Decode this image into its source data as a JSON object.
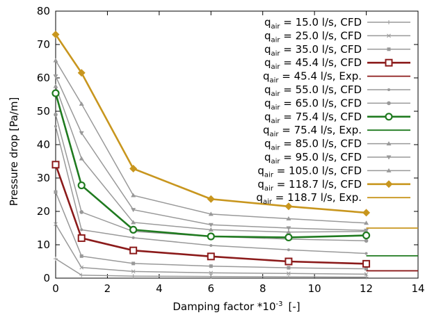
{
  "chart_data": {
    "type": "line",
    "xlabel": "Damping factor *10",
    "xlabel_exponent": "-3",
    "xlabel_unit": "[-]",
    "ylabel": "Pressure drop [Pa/m]",
    "xlim": [
      0,
      14
    ],
    "ylim": [
      0,
      80
    ],
    "xticks": [
      0,
      2,
      4,
      6,
      8,
      10,
      12,
      14
    ],
    "yticks": [
      0,
      10,
      20,
      30,
      40,
      50,
      60,
      70,
      80
    ],
    "grid": false,
    "legend_position": "top-right",
    "x": [
      0,
      1,
      3,
      6,
      9,
      12
    ],
    "series": [
      {
        "q": "15.0",
        "unit": "l/s, CFD",
        "values": [
          5.8,
          0.9,
          0.6,
          0.5,
          0.4,
          0.3
        ],
        "color": "#999999",
        "marker": "plus",
        "emphasis": false
      },
      {
        "q": "25.0",
        "unit": "l/s, CFD",
        "values": [
          16.2,
          3.2,
          2.0,
          1.6,
          1.4,
          1.2
        ],
        "color": "#999999",
        "marker": "x",
        "emphasis": false
      },
      {
        "q": "35.0",
        "unit": "l/s, CFD",
        "values": [
          25.8,
          6.6,
          4.4,
          3.6,
          3.1,
          2.8
        ],
        "color": "#999999",
        "marker": "square",
        "emphasis": false
      },
      {
        "q": "45.4",
        "unit": "l/s, CFD",
        "values": [
          34.0,
          12.0,
          8.3,
          6.5,
          5.0,
          4.3
        ],
        "color": "#8b1a1a",
        "marker": "square-open",
        "emphasis": true
      },
      {
        "q": "55.0",
        "unit": "l/s, CFD",
        "values": [
          45.5,
          14.5,
          12.1,
          9.8,
          8.5,
          7.4
        ],
        "color": "#999999",
        "marker": "dot",
        "emphasis": false
      },
      {
        "q": "65.0",
        "unit": "l/s, CFD",
        "values": [
          49.0,
          19.8,
          14.0,
          12.5,
          11.7,
          11.2
        ],
        "color": "#999999",
        "marker": "circle",
        "emphasis": false
      },
      {
        "q": "75.4",
        "unit": "l/s, CFD",
        "values": [
          55.4,
          27.8,
          14.5,
          12.5,
          12.2,
          12.8
        ],
        "color": "#1f7a1f",
        "marker": "circle-open",
        "emphasis": true
      },
      {
        "q": "85.0",
        "unit": "l/s, CFD",
        "values": [
          57.5,
          35.8,
          16.7,
          14.5,
          13.8,
          14.0
        ],
        "color": "#999999",
        "marker": "triangle",
        "emphasis": false
      },
      {
        "q": "95.0",
        "unit": "l/s, CFD",
        "values": [
          60.5,
          43.5,
          20.5,
          16.0,
          15.0,
          14.3
        ],
        "color": "#999999",
        "marker": "triangle-down",
        "emphasis": false
      },
      {
        "q": "105.0",
        "unit": "l/s, CFD",
        "values": [
          65.2,
          52.2,
          24.8,
          19.2,
          17.8,
          16.5
        ],
        "color": "#999999",
        "marker": "triangle",
        "emphasis": false
      },
      {
        "q": "118.7",
        "unit": "l/s, CFD",
        "values": [
          73.0,
          61.5,
          32.8,
          23.7,
          21.5,
          19.6
        ],
        "color": "#c8961e",
        "marker": "diamond",
        "emphasis": true
      }
    ],
    "experiments": [
      {
        "q": "45.4",
        "unit": "l/s, Exp.",
        "value": 2.2,
        "x_from": 12,
        "x_to": 14,
        "color": "#8b1a1a"
      },
      {
        "q": "75.4",
        "unit": "l/s, Exp.",
        "value": 6.7,
        "x_from": 12,
        "x_to": 14,
        "color": "#1f7a1f"
      },
      {
        "q": "118.7",
        "unit": "l/s, Exp.",
        "value": 15.0,
        "x_from": 12,
        "x_to": 14,
        "color": "#c8961e"
      }
    ],
    "legend": [
      {
        "q": "15.0",
        "unit": "l/s, CFD",
        "ref": "s0"
      },
      {
        "q": "25.0",
        "unit": "l/s, CFD",
        "ref": "s1"
      },
      {
        "q": "35.0",
        "unit": "l/s, CFD",
        "ref": "s2"
      },
      {
        "q": "45.4",
        "unit": "l/s, CFD",
        "ref": "s3"
      },
      {
        "q": "45.4",
        "unit": "l/s, Exp.",
        "ref": "e0"
      },
      {
        "q": "55.0",
        "unit": "l/s, CFD",
        "ref": "s4"
      },
      {
        "q": "65.0",
        "unit": "l/s, CFD",
        "ref": "s5"
      },
      {
        "q": "75.4",
        "unit": "l/s, CFD",
        "ref": "s6"
      },
      {
        "q": "75.4",
        "unit": "l/s, Exp.",
        "ref": "e1"
      },
      {
        "q": "85.0",
        "unit": "l/s, CFD",
        "ref": "s7"
      },
      {
        "q": "95.0",
        "unit": "l/s, CFD",
        "ref": "s8"
      },
      {
        "q": "105.0",
        "unit": "l/s, CFD",
        "ref": "s9"
      },
      {
        "q": "118.7",
        "unit": "l/s, CFD",
        "ref": "s10"
      },
      {
        "q": "118.7",
        "unit": "l/s, Exp.",
        "ref": "e2"
      }
    ],
    "legend_symbol": "q",
    "legend_subscript": "air"
  }
}
